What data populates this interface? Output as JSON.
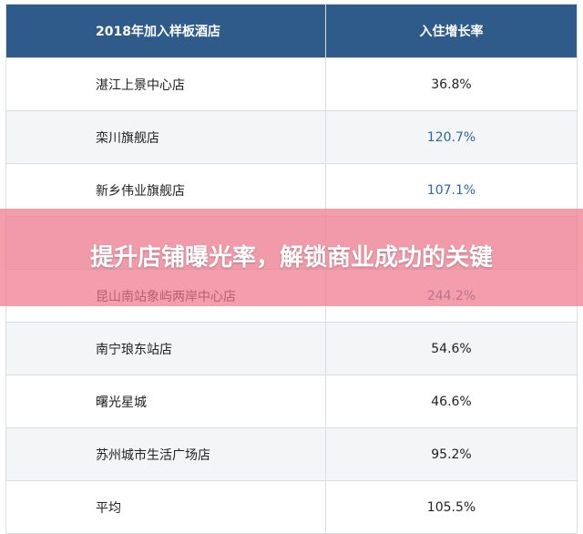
{
  "table": {
    "header": [
      "2018年加入样板酒店",
      "入住增长率"
    ],
    "rows": [
      {
        "name": "湛江上景中心店",
        "growth": "36.8%",
        "highlight": false
      },
      {
        "name": "栾川旗舰店",
        "growth": "120.7%",
        "highlight": true
      },
      {
        "name": "新乡伟业旗舰店",
        "growth": "107.1%",
        "highlight": true
      },
      {
        "hidden": true
      },
      {
        "name": "昆山南站象屿两岸中心店",
        "growth": "244.2%",
        "highlight": true
      },
      {
        "name": "南宁琅东站店",
        "growth": "54.6%",
        "highlight": false
      },
      {
        "name": "曙光星城",
        "growth": "46.6%",
        "highlight": false
      },
      {
        "name": "苏州城市生活广场店",
        "growth": "95.2%",
        "highlight": false
      },
      {
        "name": "平均",
        "growth": "105.5%",
        "highlight": false
      }
    ]
  },
  "banner": {
    "text": "提升店铺曝光率，解锁商业成功的关键"
  }
}
